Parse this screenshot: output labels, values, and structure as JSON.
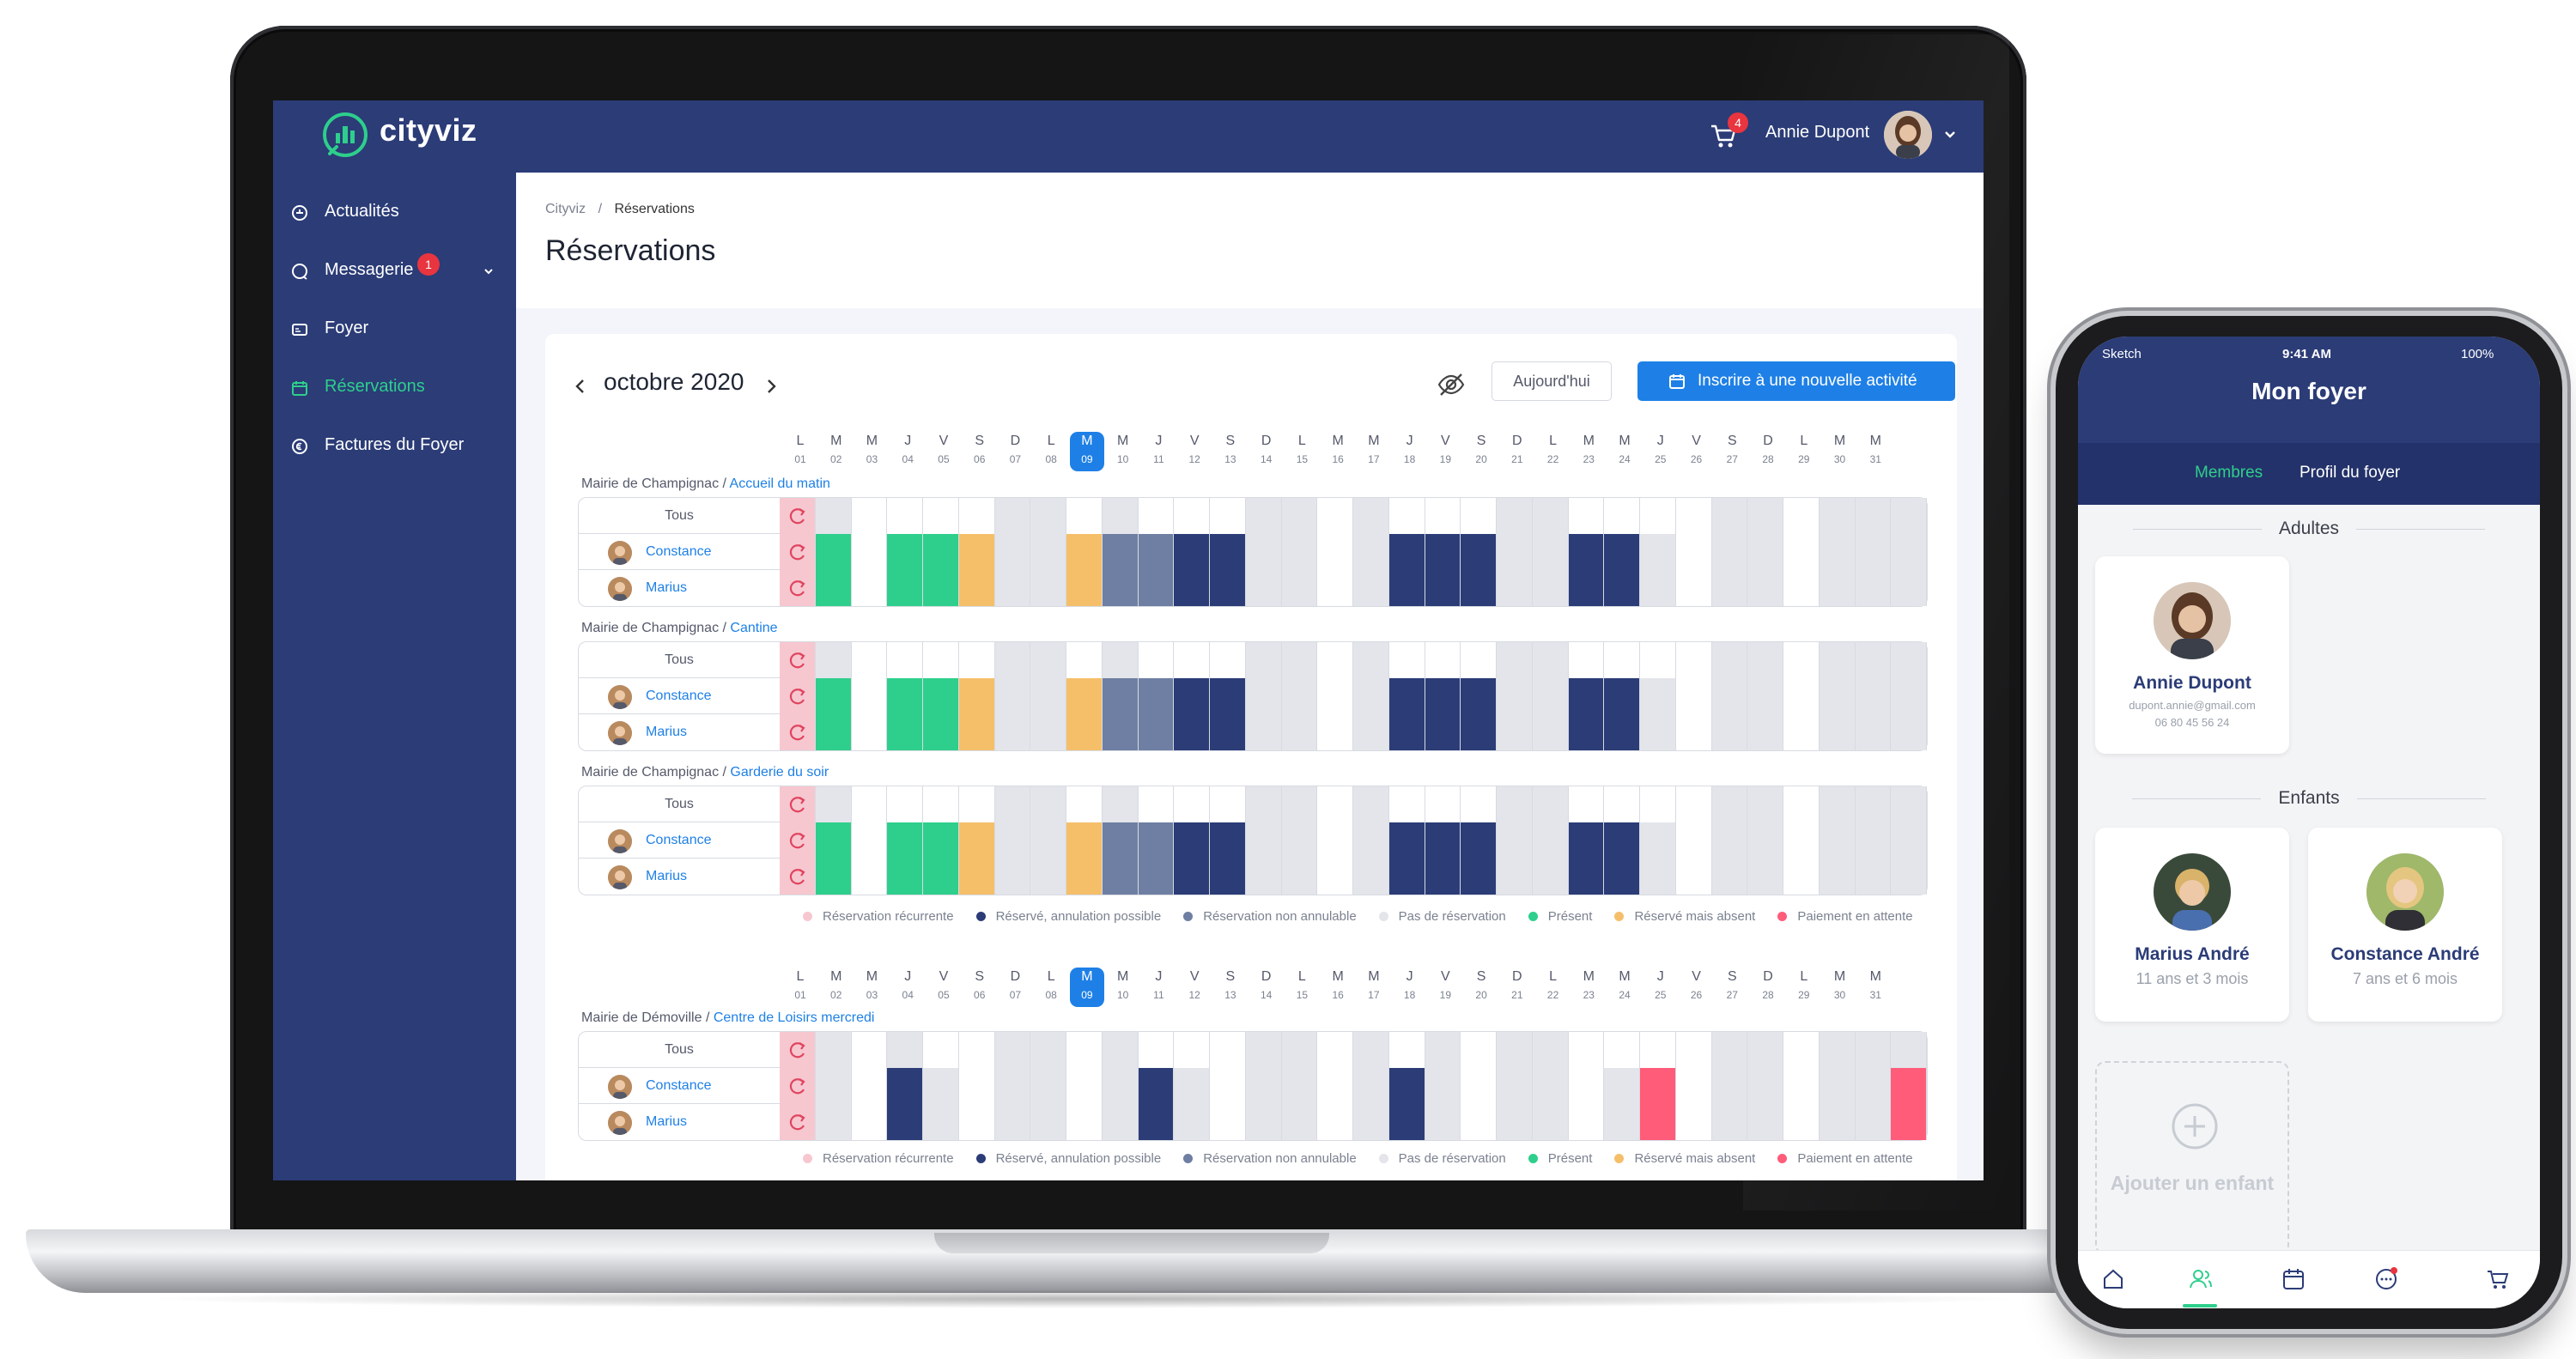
{
  "app": {
    "name": "cityviz"
  },
  "topbar": {
    "cart_count": "4",
    "user_name": "Annie Dupont"
  },
  "sidebar": {
    "items": [
      {
        "label": "Actualités",
        "icon": "news-icon",
        "active": false
      },
      {
        "label": "Messagerie",
        "icon": "chat-icon",
        "active": false,
        "badge": "1"
      },
      {
        "label": "Foyer",
        "icon": "household-icon",
        "active": false
      },
      {
        "label": "Réservations",
        "icon": "calendar-icon",
        "active": true
      },
      {
        "label": "Factures du Foyer",
        "icon": "invoice-icon",
        "active": false
      }
    ]
  },
  "breadcrumb": {
    "root": "Cityviz",
    "sep": "/",
    "current": "Réservations"
  },
  "page": {
    "title": "Réservations"
  },
  "calendar": {
    "month_label": "octobre 2020",
    "today_label": "Aujourd'hui",
    "new_activity_label": "Inscrire à une nouvelle activité",
    "selected_day": 9,
    "days": [
      {
        "l": "L",
        "n": "01"
      },
      {
        "l": "M",
        "n": "02"
      },
      {
        "l": "M",
        "n": "03"
      },
      {
        "l": "J",
        "n": "04"
      },
      {
        "l": "V",
        "n": "05"
      },
      {
        "l": "S",
        "n": "06"
      },
      {
        "l": "D",
        "n": "07"
      },
      {
        "l": "L",
        "n": "08"
      },
      {
        "l": "M",
        "n": "09"
      },
      {
        "l": "M",
        "n": "10"
      },
      {
        "l": "J",
        "n": "11"
      },
      {
        "l": "V",
        "n": "12"
      },
      {
        "l": "S",
        "n": "13"
      },
      {
        "l": "D",
        "n": "14"
      },
      {
        "l": "L",
        "n": "15"
      },
      {
        "l": "M",
        "n": "16"
      },
      {
        "l": "M",
        "n": "17"
      },
      {
        "l": "J",
        "n": "18"
      },
      {
        "l": "V",
        "n": "19"
      },
      {
        "l": "S",
        "n": "20"
      },
      {
        "l": "D",
        "n": "21"
      },
      {
        "l": "L",
        "n": "22"
      },
      {
        "l": "M",
        "n": "23"
      },
      {
        "l": "M",
        "n": "24"
      },
      {
        "l": "J",
        "n": "25"
      },
      {
        "l": "V",
        "n": "26"
      },
      {
        "l": "S",
        "n": "27"
      },
      {
        "l": "D",
        "n": "28"
      },
      {
        "l": "L",
        "n": "29"
      },
      {
        "l": "M",
        "n": "30"
      },
      {
        "l": "M",
        "n": "31"
      }
    ],
    "status_colors": {
      "E": "#ffffff",
      "G": "#e3e5ea",
      "R": "#2b3c77",
      "N": "#6e7fa3",
      "P": "#2ecf8c",
      "A": "#f5bf6a",
      "W": "#ff5c7a"
    },
    "groups": [
      {
        "org": "Mairie de Champignac",
        "sep": " / ",
        "activity": "Accueil du matin",
        "rows": [
          {
            "label": "Tous",
            "kid": false,
            "cells": "GEEEEGGEGEEEGGEGEEEGGEEEEGGEGGG"
          },
          {
            "label": "Constance",
            "kid": true,
            "cells": "PEPPAGGANNRRGGEGRRRGGRRGEGGEGGG"
          },
          {
            "label": "Marius",
            "kid": true,
            "cells": "PEPPAGGANNRRGGEGRRRGGRRGEGGEGGG"
          }
        ]
      },
      {
        "org": "Mairie de Champignac",
        "sep": " / ",
        "activity": "Cantine",
        "rows": [
          {
            "label": "Tous",
            "kid": false,
            "cells": "GEEEEGGEGEEEGGEGEEEGGEEEEGGEGGG"
          },
          {
            "label": "Constance",
            "kid": true,
            "cells": "PEPPAGGANNRRGGEGRRRGGRRGEGGEGGG"
          },
          {
            "label": "Marius",
            "kid": true,
            "cells": "PEPPAGGANNRRGGEGRRRGGRRGEGGEGGG"
          }
        ]
      },
      {
        "org": "Mairie de Champignac",
        "sep": " / ",
        "activity": "Garderie du soir",
        "rows": [
          {
            "label": "Tous",
            "kid": false,
            "cells": "GEEEEGGEGEEEGGEGEEEGGEEEEGGEGGG"
          },
          {
            "label": "Constance",
            "kid": true,
            "cells": "PEPPAGGANNRRGGEGRRRGGRRGEGGEGGG"
          },
          {
            "label": "Marius",
            "kid": true,
            "cells": "PEPPAGGANNRRGGEGRRRGGRRGEGGEGGG"
          }
        ]
      }
    ],
    "groups2": [
      {
        "org": "Mairie de Démoville",
        "sep": " / ",
        "activity": "Centre de Loisirs mercredi",
        "rows": [
          {
            "label": "Tous",
            "kid": false,
            "cells": "GEGEEGGEGEEEGGEGEGEGGEEEEGGEGGG"
          },
          {
            "label": "Constance",
            "kid": true,
            "cells": "GERGEGGEGRGEGGEGRGEGGEGWEGGEGGW"
          },
          {
            "label": "Marius",
            "kid": true,
            "cells": "GERGEGGEGRGEGGEGRGEGGEGWEGGEGGW"
          }
        ]
      }
    ],
    "legend": [
      {
        "label": "Réservation récurrente",
        "color": "#f7c7d0"
      },
      {
        "label": "Réservé, annulation possible",
        "color": "#2b3c77"
      },
      {
        "label": "Réservation non annulable",
        "color": "#6e7fa3"
      },
      {
        "label": "Pas de réservation",
        "color": "#e3e5ea"
      },
      {
        "label": "Présent",
        "color": "#2ecf8c"
      },
      {
        "label": "Réservé mais absent",
        "color": "#f5bf6a"
      },
      {
        "label": "Paiement en attente",
        "color": "#ff5c7a"
      }
    ]
  },
  "phone": {
    "status": {
      "carrier": "Sketch",
      "time": "9:41 AM",
      "battery": "100%"
    },
    "title": "Mon foyer",
    "tabs": [
      "Membres",
      "Profil du foyer"
    ],
    "adults_label": "Adultes",
    "kids_label": "Enfants",
    "adult": {
      "name": "Annie Dupont",
      "email": "dupont.annie@gmail.com",
      "phone": "06 80 45 56 24"
    },
    "kids": [
      {
        "name": "Marius André",
        "age": "11 ans et 3 mois"
      },
      {
        "name": "Constance André",
        "age": "7 ans et 6 mois"
      }
    ],
    "add_child_label": "Ajouter un enfant"
  }
}
